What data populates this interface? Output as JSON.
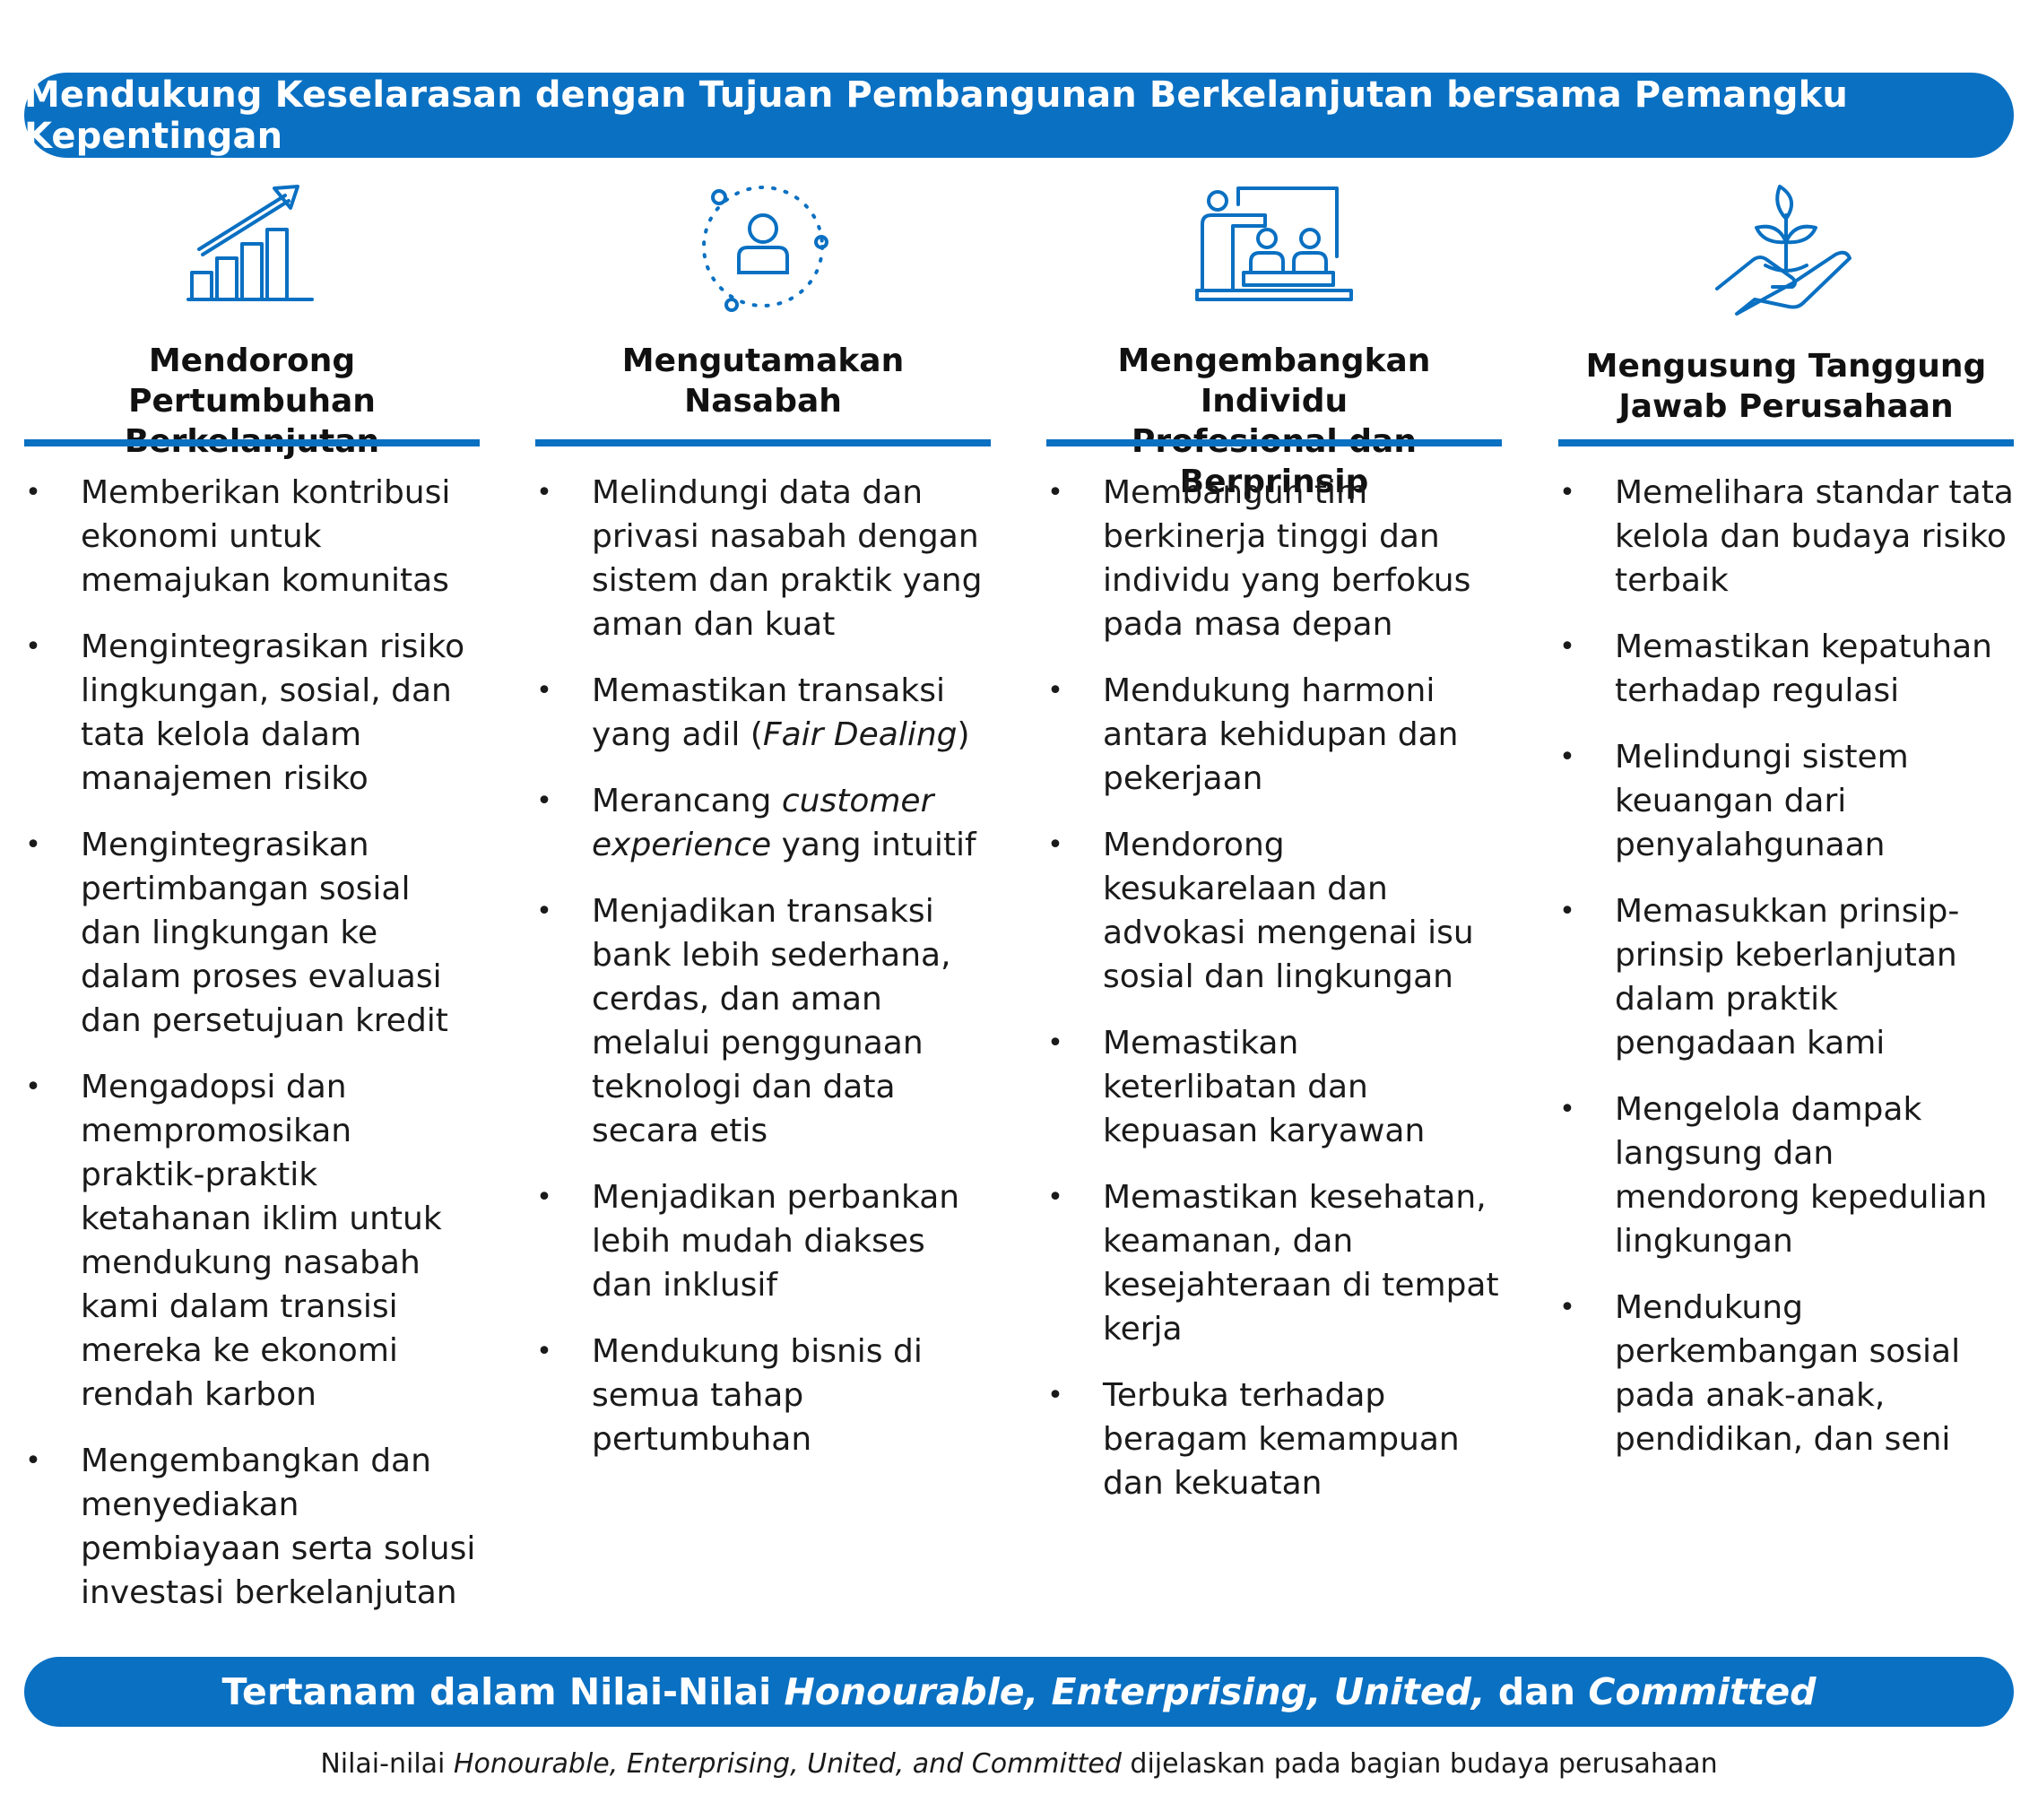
{
  "header": {
    "title": "Mendukung Keselarasan dengan Tujuan Pembangunan Berkelanjutan bersama Pemangku Kepentingan"
  },
  "accent_color": "#0a70c2",
  "columns": [
    {
      "icon": "growth-chart-icon",
      "title_line1": "Mendorong Pertumbuhan",
      "title_line2": "Berkelanjutan",
      "bullets": [
        "Memberikan kontribusi ekonomi untuk memajukan komunitas",
        "Mengintegrasikan risiko lingkungan, sosial, dan tata kelola dalam manajemen risiko",
        "Mengintegrasikan pertimbangan sosial dan lingkungan ke dalam proses evaluasi dan persetujuan kredit",
        "Mengadopsi dan mempromosikan praktik-praktik ketahanan iklim untuk mendukung nasabah kami dalam transisi mereka ke ekonomi rendah karbon",
        "Mengembangkan dan menyediakan pembiayaan serta solusi investasi berkelanjutan"
      ]
    },
    {
      "icon": "customer-focus-icon",
      "title_line1": "Mengutamakan",
      "title_line2": "Nasabah",
      "bullets": [
        "Melindungi data dan privasi nasabah dengan sistem dan praktik yang aman dan kuat",
        "Memastikan transaksi yang adil (",
        "Merancang ",
        "Menjadikan transaksi bank lebih sederhana, cerdas, dan aman melalui penggunaan teknologi dan data secara etis",
        "Menjadikan perbankan lebih mudah diakses dan inklusif",
        "Mendukung bisnis di semua tahap pertumbuhan"
      ],
      "b2_italic": "Fair Dealing",
      "b2_end": ")",
      "b3_italic": "customer experience",
      "b3_end": " yang intuitif"
    },
    {
      "icon": "training-presentation-icon",
      "title_line1": "Mengembangkan Individu",
      "title_line2": "Profesional dan Berprinsip",
      "bullets": [
        "Membangun tim berkinerja tinggi dan individu yang berfokus pada masa depan",
        "Mendukung harmoni antara kehidupan dan pekerjaan",
        "Mendorong kesukarelaan dan advokasi mengenai isu sosial dan lingkungan",
        "Memastikan keterlibatan dan kepuasan karyawan",
        "Memastikan kesehatan, keamanan, dan kesejahteraan di tempat kerja",
        "Terbuka terhadap beragam kemampuan dan kekuatan"
      ]
    },
    {
      "icon": "hand-plant-icon",
      "title_line1": "Mengusung Tanggung",
      "title_line2": "Jawab Perusahaan",
      "bullets": [
        "Memelihara standar tata kelola dan budaya risiko terbaik",
        "Memastikan kepatuhan terhadap regulasi",
        "Melindungi sistem keuangan dari penyalahgunaan",
        "Memasukkan prinsip-prinsip keberlanjutan dalam praktik pengadaan kami",
        "Mengelola dampak langsung dan mendorong kepedulian lingkungan",
        "Mendukung perkembangan sosial pada anak-anak, pendidikan, dan seni"
      ]
    }
  ],
  "footer_banner": {
    "prefix": "Tertanam dalam Nilai-Nilai ",
    "values_italic": "Honourable, Enterprising, United,",
    "connector": " dan ",
    "last_italic": "Committed"
  },
  "footnote": {
    "prefix": "Nilai-nilai ",
    "italic": "Honourable, Enterprising, United, and Committed",
    "suffix": " dijelaskan pada bagian budaya perusahaan"
  }
}
